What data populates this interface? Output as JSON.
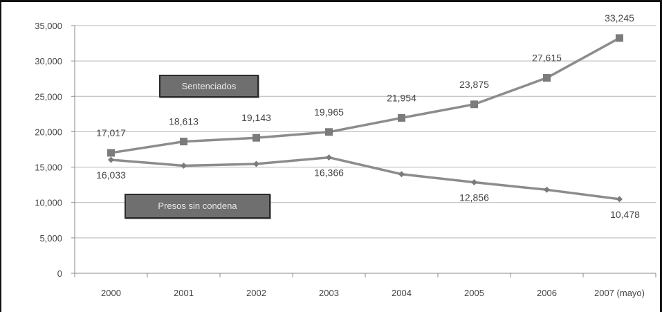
{
  "chart_data": {
    "type": "line",
    "categories": [
      "2000",
      "2001",
      "2002",
      "2003",
      "2004",
      "2005",
      "2006",
      "2007 (mayo)"
    ],
    "ylim": [
      0,
      35000
    ],
    "yticks": [
      "0",
      "5,000",
      "10,000",
      "15,000",
      "20,000",
      "25,000",
      "30,000",
      "35,000"
    ],
    "grid": true,
    "series": [
      {
        "name": "Sentenciados",
        "marker": "square",
        "color": "#8c8c8c",
        "values": [
          17017,
          18613,
          19143,
          19965,
          21954,
          23875,
          27615,
          33245
        ],
        "data_labels": [
          "17,017",
          "18,613",
          "19,143",
          "19,965",
          "21,954",
          "23,875",
          "27,615",
          "33,245"
        ]
      },
      {
        "name": "Presos sin condena",
        "marker": "diamond",
        "color": "#8c8c8c",
        "values": [
          16033,
          15200,
          15450,
          16366,
          14000,
          12856,
          11800,
          10478
        ],
        "data_labels": [
          "16,033",
          "",
          "",
          "16,366",
          "",
          "12,856",
          "",
          "10,478"
        ]
      }
    ]
  }
}
